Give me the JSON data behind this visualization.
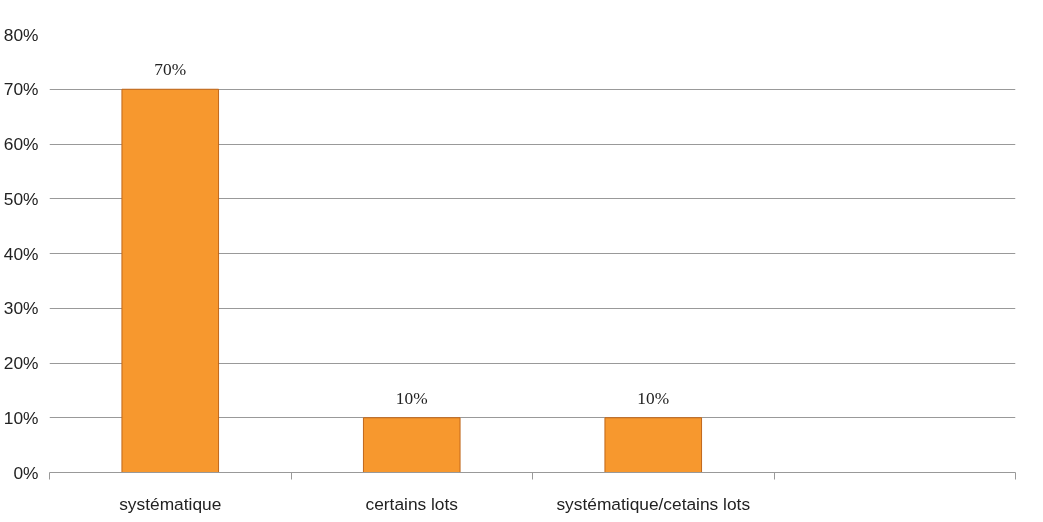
{
  "chart_data": {
    "type": "bar",
    "categories": [
      "systématique",
      "certains lots",
      "systématique/cetains lots",
      null
    ],
    "values": [
      70,
      10,
      10,
      null
    ],
    "value_labels": [
      "70%",
      "10%",
      "10%",
      null
    ],
    "color": "#f7982e",
    "ylim": [
      0,
      80
    ],
    "yticks": [
      {
        "value": 0,
        "label": "0%"
      },
      {
        "value": 10,
        "label": "10%"
      },
      {
        "value": 20,
        "label": "20%"
      },
      {
        "value": 30,
        "label": "30%"
      },
      {
        "value": 40,
        "label": "40%"
      },
      {
        "value": 50,
        "label": "50%"
      },
      {
        "value": 60,
        "label": "60%"
      },
      {
        "value": 70,
        "label": "70%"
      },
      {
        "value": 80,
        "label": "80%"
      }
    ],
    "grid": "y"
  }
}
